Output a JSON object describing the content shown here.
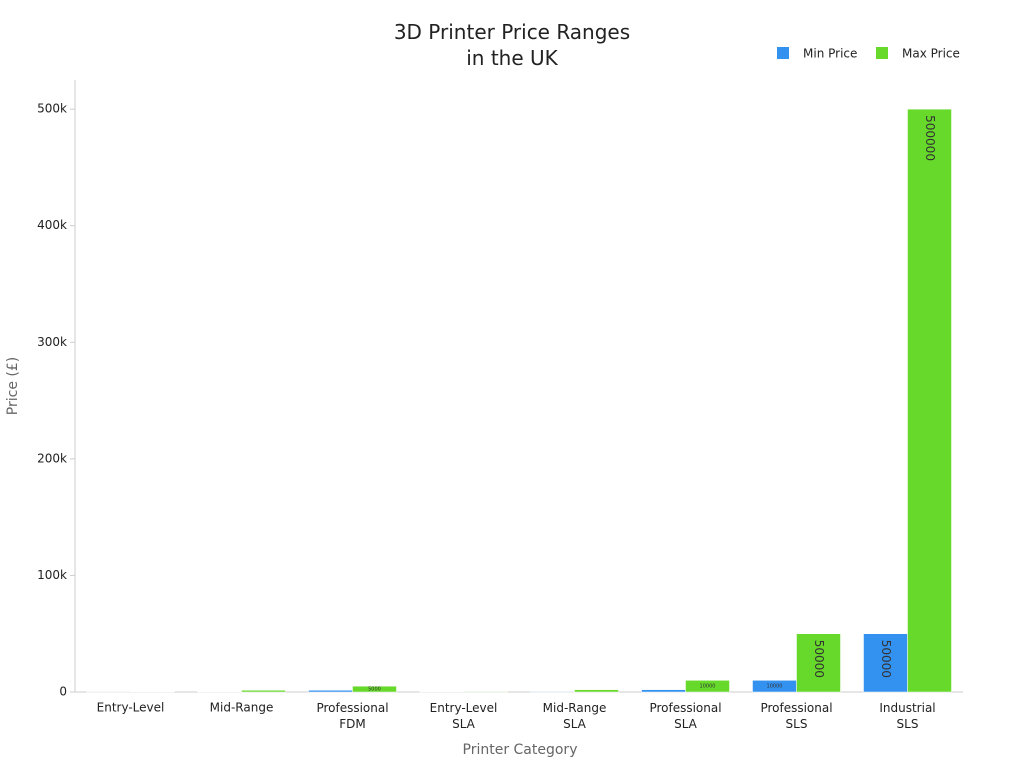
{
  "chart_data": {
    "type": "bar",
    "title": "3D Printer Price Ranges\nin the UK",
    "x_label": "Printer Category",
    "y_label": "Price (£)",
    "categories": [
      "Entry-Level",
      "Mid-Range",
      "Professional\nFDM",
      "Entry-Level\nSLA",
      "Mid-Range\nSLA",
      "Professional\nSLA",
      "Professional\nSLS",
      "Industrial\nSLS"
    ],
    "series": [
      {
        "name": "Min Price",
        "color": "#3391f0",
        "values": [
          100,
          300,
          1500,
          200,
          500,
          2000,
          10000,
          50000
        ]
      },
      {
        "name": "Max Price",
        "color": "#66d92a",
        "values": [
          300,
          1500,
          5000,
          500,
          2000,
          10000,
          50000,
          500000
        ]
      }
    ],
    "ylim": [
      0,
      525000
    ],
    "yticks": [
      0,
      {
        "value": 100000,
        "label": "100k"
      },
      {
        "value": 200000,
        "label": "200k"
      },
      {
        "value": 300000,
        "label": "300k"
      },
      {
        "value": 400000,
        "label": "400k"
      },
      {
        "value": 500000,
        "label": "500k"
      }
    ],
    "grid": false,
    "legend": "top-right"
  }
}
